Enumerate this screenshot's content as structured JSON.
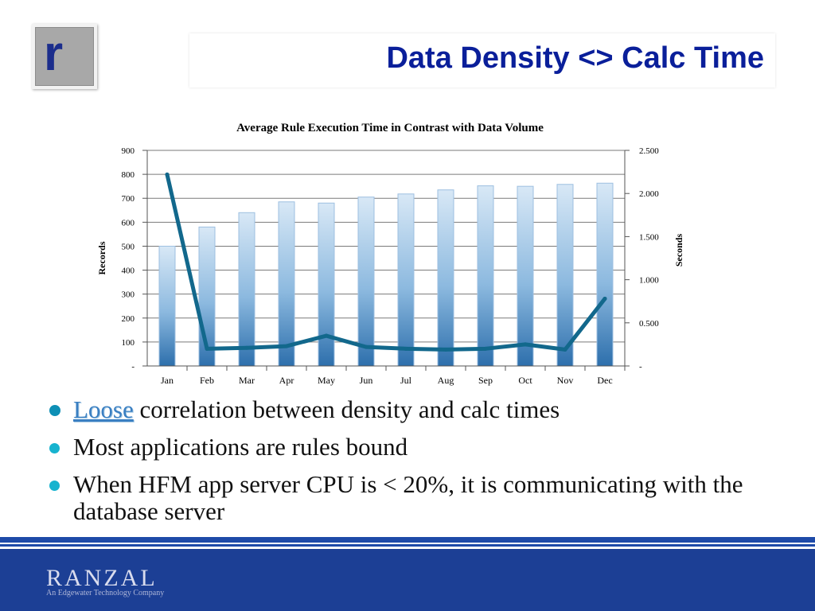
{
  "slide": {
    "title": "Data Density <> Calc Time",
    "logo_letter": "r",
    "bullets": [
      {
        "highlight": "Loose",
        "text": " correlation between density and calc times"
      },
      {
        "text": "Most applications are rules bound"
      },
      {
        "text": "When HFM app server CPU is < 20%, it is communicating with the database server"
      }
    ],
    "footer": {
      "brand": "RANZAL",
      "tagline": "An Edgewater Technology Company"
    }
  },
  "colors": {
    "accent": "#0a1f9a",
    "bullet": "#17b3cf",
    "footer": "#1c3f95",
    "line": "#12688c"
  },
  "chart_data": {
    "type": "bar",
    "title": "Average Rule Execution Time in Contrast with Data Volume",
    "categories": [
      "Jan",
      "Feb",
      "Mar",
      "Apr",
      "May",
      "Jun",
      "Jul",
      "Aug",
      "Sep",
      "Oct",
      "Nov",
      "Dec"
    ],
    "series": [
      {
        "name": "Records",
        "type": "bar",
        "axis": "left",
        "values": [
          500,
          580,
          640,
          685,
          680,
          705,
          718,
          735,
          752,
          750,
          758,
          763
        ]
      },
      {
        "name": "Seconds",
        "type": "line",
        "axis": "right",
        "values": [
          2.22,
          0.2,
          0.21,
          0.23,
          0.35,
          0.22,
          0.2,
          0.19,
          0.2,
          0.25,
          0.19,
          0.78
        ]
      }
    ],
    "ylabel": "Records",
    "y2label": "Seconds",
    "ylim": [
      0,
      900
    ],
    "y2lim": [
      0,
      2.5
    ],
    "yticks": [
      "-",
      "100",
      "200",
      "300",
      "400",
      "500",
      "600",
      "700",
      "800",
      "900"
    ],
    "y2ticks": [
      "-",
      "0.500",
      "1.000",
      "1.500",
      "2.000",
      "2.500"
    ],
    "grid": true
  }
}
